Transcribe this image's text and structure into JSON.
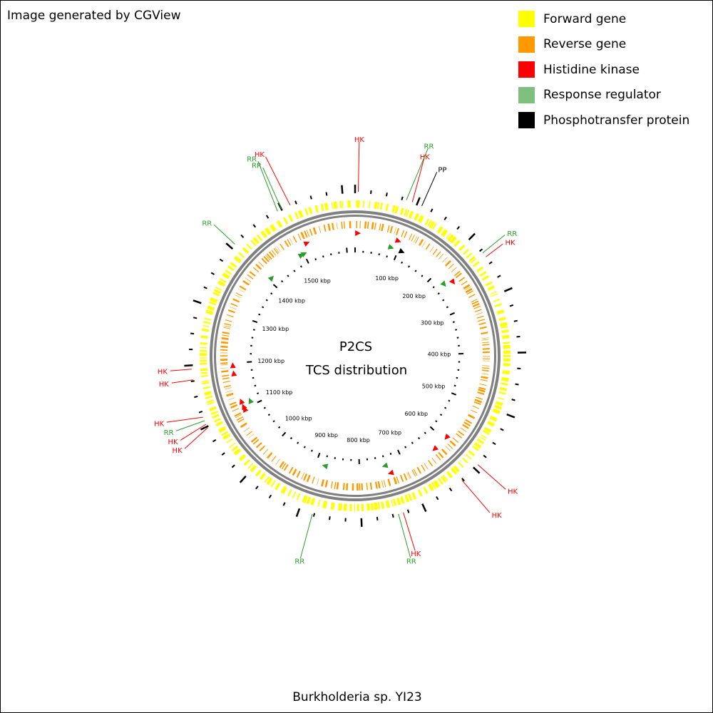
{
  "credit": "Image generated by CGView",
  "organism": "Burkholderia sp. YI23",
  "center_title": "P2CS",
  "center_subtitle": "TCS distribution",
  "colors": {
    "forward": "#ffff00",
    "reverse": "#ff9900",
    "histidine_kinase": "#ff0000",
    "response_regulator": "#2a9d2a",
    "phosphotransfer": "#000000",
    "backbone": "#808080",
    "rr_swatch": "#7fbf7f"
  },
  "legend": [
    {
      "label": "Forward gene",
      "color": "#ffff00"
    },
    {
      "label": "Reverse gene",
      "color": "#ff9900"
    },
    {
      "label": "Histidine kinase",
      "color": "#ff0000"
    },
    {
      "label": "Response regulator",
      "color": "#7fbf7f"
    },
    {
      "label": "Phosphotransfer protein",
      "color": "#000000"
    }
  ],
  "sequence_length_kbp": 1620,
  "tick_labels": [
    "100 kbp",
    "200 kbp",
    "300 kbp",
    "400 kbp",
    "500 kbp",
    "600 kbp",
    "700 kbp",
    "800 kbp",
    "900 kbp",
    "1000 kbp",
    "1100 kbp",
    "1200 kbp",
    "1300 kbp",
    "1400 kbp",
    "1500 kbp"
  ],
  "features": [
    {
      "type": "HK",
      "position_kbp": 5
    },
    {
      "type": "RR",
      "position_kbp": 82
    },
    {
      "type": "HK",
      "position_kbp": 92
    },
    {
      "type": "PP",
      "position_kbp": 108
    },
    {
      "type": "RR",
      "position_kbp": 230
    },
    {
      "type": "HK",
      "position_kbp": 238
    },
    {
      "type": "HK",
      "position_kbp": 592
    },
    {
      "type": "HK",
      "position_kbp": 627
    },
    {
      "type": "HK",
      "position_kbp": 733
    },
    {
      "type": "RR",
      "position_kbp": 741
    },
    {
      "type": "RR",
      "position_kbp": 878
    },
    {
      "type": "HK",
      "position_kbp": 1098
    },
    {
      "type": "HK",
      "position_kbp": 1104
    },
    {
      "type": "RR",
      "position_kbp": 1110
    },
    {
      "type": "HK",
      "position_kbp": 1116
    },
    {
      "type": "HK",
      "position_kbp": 1177
    },
    {
      "type": "HK",
      "position_kbp": 1194
    },
    {
      "type": "RR",
      "position_kbp": 1408
    },
    {
      "type": "RR",
      "position_kbp": 1493
    },
    {
      "type": "RR",
      "position_kbp": 1500
    },
    {
      "type": "HK",
      "position_kbp": 1515
    }
  ],
  "feature_labels": [
    {
      "text": "HK",
      "type": "HK",
      "position_kbp": 5
    },
    {
      "text": "HK",
      "type": "HK",
      "position_kbp": 92
    },
    {
      "text": "RR",
      "type": "RR",
      "position_kbp": 82
    },
    {
      "text": "PP",
      "type": "PP",
      "position_kbp": 108
    },
    {
      "text": "RR",
      "type": "RR",
      "position_kbp": 230
    },
    {
      "text": "HK",
      "type": "HK",
      "position_kbp": 238
    },
    {
      "text": "HK",
      "type": "HK",
      "position_kbp": 592
    },
    {
      "text": "HK",
      "type": "HK",
      "position_kbp": 627
    },
    {
      "text": "HK",
      "type": "HK",
      "position_kbp": 733
    },
    {
      "text": "RR",
      "type": "RR",
      "position_kbp": 741
    },
    {
      "text": "RR",
      "type": "RR",
      "position_kbp": 878
    },
    {
      "text": "HK",
      "type": "HK",
      "position_kbp": 1116
    },
    {
      "text": "RR",
      "type": "RR",
      "position_kbp": 1110
    },
    {
      "text": "HK",
      "type": "HK",
      "position_kbp": 1104
    },
    {
      "text": "HK",
      "type": "HK",
      "position_kbp": 1098
    },
    {
      "text": "HK",
      "type": "HK",
      "position_kbp": 1194
    },
    {
      "text": "HK",
      "type": "HK",
      "position_kbp": 1177
    },
    {
      "text": "RR",
      "type": "RR",
      "position_kbp": 1408
    },
    {
      "text": "RR",
      "type": "RR",
      "position_kbp": 1493
    },
    {
      "text": "RR",
      "type": "RR",
      "position_kbp": 1500
    },
    {
      "text": "HK",
      "type": "HK",
      "position_kbp": 1515
    }
  ]
}
